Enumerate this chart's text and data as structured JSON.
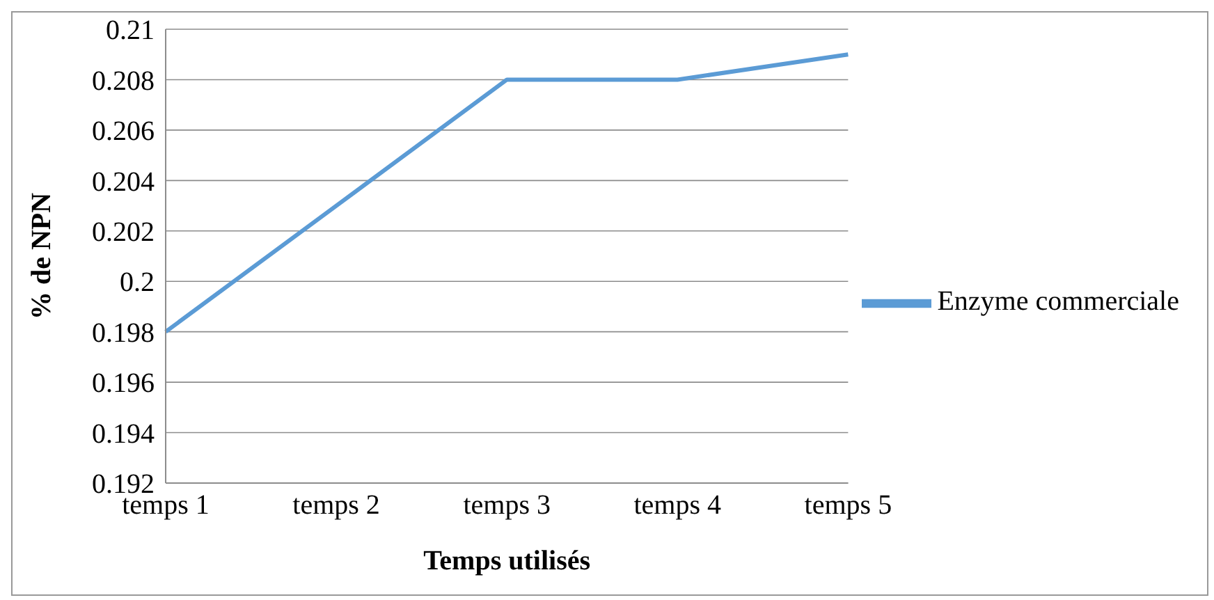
{
  "chart_data": {
    "type": "line",
    "xlabel": "Temps utilisés",
    "ylabel": "% de NPN",
    "categories": [
      "temps 1",
      "temps 2",
      "temps 3",
      "temps 4",
      "temps 5"
    ],
    "series": [
      {
        "name": "Enzyme commerciale",
        "color": "#5b9bd5",
        "values": [
          0.198,
          0.203,
          0.208,
          0.208,
          0.209
        ]
      }
    ],
    "ylim": [
      0.192,
      0.21
    ],
    "yticks": [
      0.192,
      0.194,
      0.196,
      0.198,
      0.2,
      0.202,
      0.204,
      0.206,
      0.208,
      0.21
    ],
    "grid": "y",
    "legend": "right",
    "marker": "none",
    "line_style": "solid"
  }
}
